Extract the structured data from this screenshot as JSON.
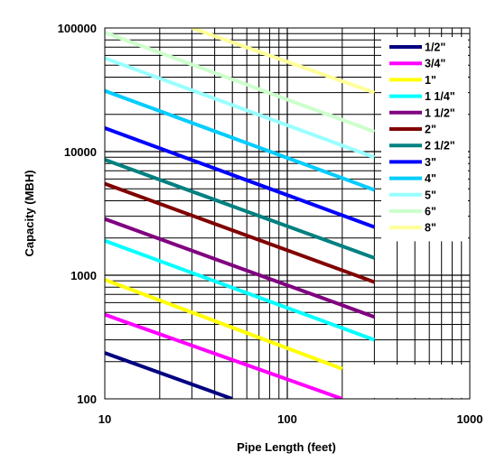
{
  "chart_data": {
    "type": "line",
    "title": "",
    "xlabel": "Pipe Length (feet)",
    "ylabel": "Capacity (MBH)",
    "x_scale": "log",
    "y_scale": "log",
    "xlim": [
      10,
      1000
    ],
    "ylim": [
      100,
      100000
    ],
    "grid": true,
    "legend_position": "right",
    "x_ticks": [
      "10",
      "100",
      "1000"
    ],
    "y_ticks": [
      "100",
      "1000",
      "10000",
      "100000"
    ],
    "series": [
      {
        "name": "1/2\"",
        "color": "#000080",
        "x": [
          10,
          50
        ],
        "y": [
          235,
          100
        ]
      },
      {
        "name": "3/4\"",
        "color": "#FF00FF",
        "x": [
          10,
          200
        ],
        "y": [
          480,
          100
        ]
      },
      {
        "name": "1\"",
        "color": "#FFFF00",
        "x": [
          10,
          200
        ],
        "y": [
          920,
          175
        ]
      },
      {
        "name": "1 1/4\"",
        "color": "#00FFFF",
        "x": [
          10,
          300
        ],
        "y": [
          1900,
          300
        ]
      },
      {
        "name": "1 1/2\"",
        "color": "#800080",
        "x": [
          10,
          300
        ],
        "y": [
          2850,
          460
        ]
      },
      {
        "name": "2\"",
        "color": "#800000",
        "x": [
          10,
          300
        ],
        "y": [
          5500,
          880
        ]
      },
      {
        "name": "2 1/2\"",
        "color": "#008080",
        "x": [
          10,
          300
        ],
        "y": [
          8600,
          1380
        ]
      },
      {
        "name": "3\"",
        "color": "#0000FF",
        "x": [
          10,
          300
        ],
        "y": [
          15500,
          2450
        ]
      },
      {
        "name": "4\"",
        "color": "#00CCFF",
        "x": [
          10,
          300
        ],
        "y": [
          31000,
          4900
        ]
      },
      {
        "name": "5\"",
        "color": "#99FFFF",
        "x": [
          10,
          300
        ],
        "y": [
          57000,
          9000
        ]
      },
      {
        "name": "6\"",
        "color": "#CCFFCC",
        "x": [
          10,
          300
        ],
        "y": [
          92000,
          14500
        ]
      },
      {
        "name": "8\"",
        "color": "#FFFF99",
        "x": [
          30,
          300
        ],
        "y": [
          100000,
          30000
        ]
      }
    ]
  }
}
